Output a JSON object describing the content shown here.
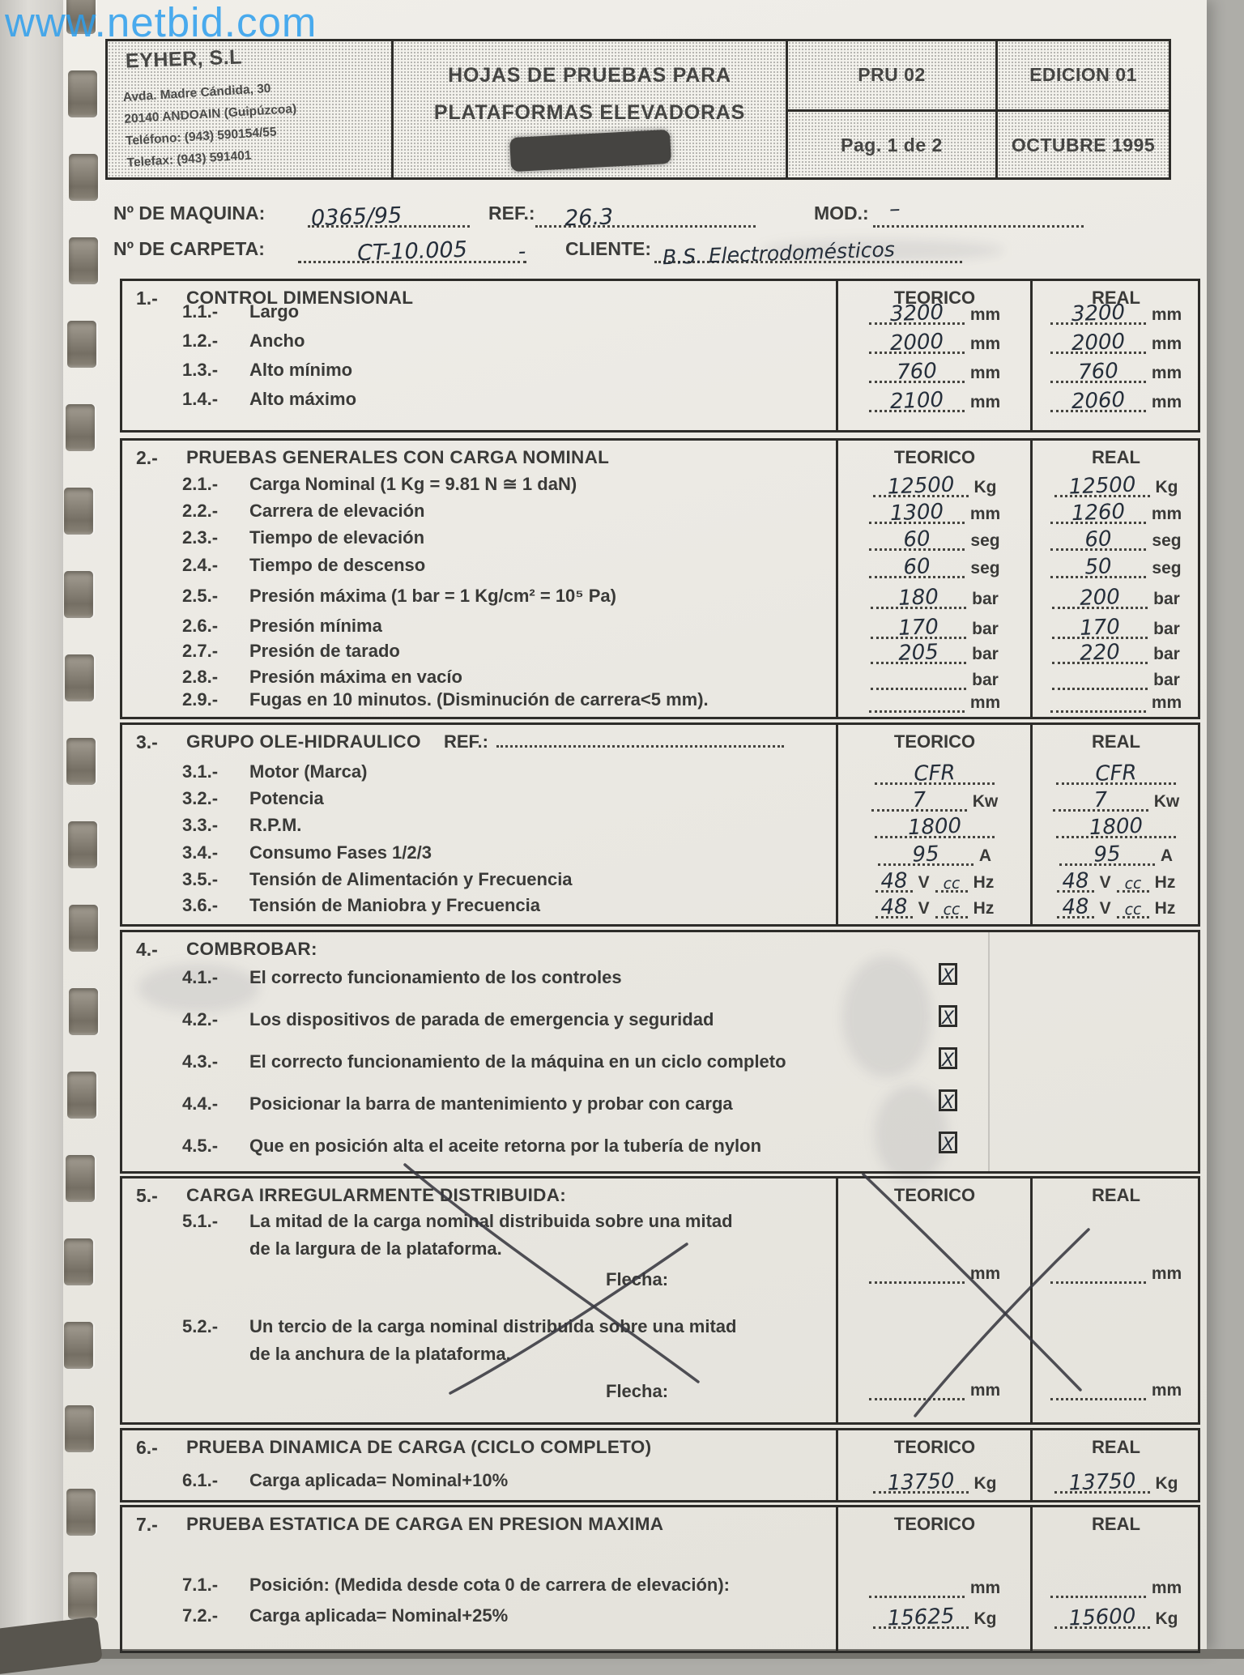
{
  "watermark": "www.netbid.com",
  "header": {
    "company": {
      "name": "EYHER, S.L",
      "address1": "Avda. Madre Cándida, 30",
      "address2": "20140 ANDOAIN (Guipúzcoa)",
      "phone": "Teléfono: (943) 590154/55",
      "fax": "Telefax:   (943) 591401"
    },
    "title_line1": "HOJAS DE PRUEBAS PARA",
    "title_line2": "PLATAFORMAS ELEVADORAS",
    "doc_code": "PRU 02",
    "edition": "EDICION 01",
    "page": "Pag. 1 de 2",
    "date": "OCTUBRE 1995"
  },
  "machine": {
    "maquina_label": "Nº DE MAQUINA:",
    "maquina_value": "0365/95",
    "ref_label": "REF.:",
    "ref_value": "26.3",
    "mod_label": "MOD.:",
    "mod_value": "–",
    "carpeta_label": "Nº DE CARPETA:",
    "carpeta_value": "CT-10.005",
    "separator": "-",
    "cliente_label": "CLIENTE:",
    "cliente_value": "B.S. Electrodomésticos"
  },
  "cols": {
    "teorico": "TEORICO",
    "real": "REAL"
  },
  "s1": {
    "num": "1.-",
    "title": "CONTROL DIMENSIONAL",
    "rows": [
      {
        "num": "1.1.-",
        "label": "Largo",
        "teorico": "3200",
        "real": "3200",
        "unit": "mm"
      },
      {
        "num": "1.2.-",
        "label": "Ancho",
        "teorico": "2000",
        "real": "2000",
        "unit": "mm"
      },
      {
        "num": "1.3.-",
        "label": "Alto mínimo",
        "teorico": "760",
        "real": "760",
        "unit": "mm"
      },
      {
        "num": "1.4.-",
        "label": "Alto máximo",
        "teorico": "2100",
        "real": "2060",
        "unit": "mm"
      }
    ]
  },
  "s2": {
    "num": "2.-",
    "title": "PRUEBAS GENERALES CON CARGA NOMINAL",
    "rows": [
      {
        "num": "2.1.-",
        "label": "Carga Nominal (1 Kg = 9.81 N ≅ 1 daN)",
        "teorico": "12500",
        "real": "12500",
        "unit": "Kg"
      },
      {
        "num": "2.2.-",
        "label": "Carrera de elevación",
        "teorico": "1300",
        "real": "1260",
        "unit": "mm"
      },
      {
        "num": "2.3.-",
        "label": "Tiempo de elevación",
        "teorico": "60",
        "real": "60",
        "unit": "seg"
      },
      {
        "num": "2.4.-",
        "label": "Tiempo de descenso",
        "teorico": "60",
        "real": "50",
        "unit": "seg"
      },
      {
        "num": "2.5.-",
        "label": "Presión máxima (1 bar = 1 Kg/cm² = 10⁵ Pa)",
        "teorico": "180",
        "real": "200",
        "unit": "bar"
      },
      {
        "num": "2.6.-",
        "label": "Presión mínima",
        "teorico": "170",
        "real": "170",
        "unit": "bar"
      },
      {
        "num": "2.7.-",
        "label": "Presión de tarado",
        "teorico": "205",
        "real": "220",
        "unit": "bar"
      },
      {
        "num": "2.8.-",
        "label": "Presión máxima en vacío",
        "teorico": "",
        "real": "",
        "unit": "bar"
      },
      {
        "num": "2.9.-",
        "label": "Fugas en 10 minutos. (Disminución de carrera<5 mm).",
        "teorico": "",
        "real": "",
        "unit": "mm"
      }
    ]
  },
  "s3": {
    "num": "3.-",
    "title": "GRUPO OLE-HIDRAULICO",
    "ref_label": "REF.:",
    "rows": [
      {
        "num": "3.1.-",
        "label": "Motor (Marca)",
        "teorico": "CFR",
        "real": "CFR",
        "unit": ""
      },
      {
        "num": "3.2.-",
        "label": "Potencia",
        "teorico": "7",
        "real": "7",
        "unit": "Kw"
      },
      {
        "num": "3.3.-",
        "label": "R.P.M.",
        "teorico": "1800",
        "real": "1800",
        "unit": ""
      },
      {
        "num": "3.4.-",
        "label": "Consumo Fases 1/2/3",
        "teorico": "95",
        "real": "95",
        "unit": "A"
      },
      {
        "num": "3.5.-",
        "label": "Tensión de Alimentación y Frecuencia",
        "teorico": "48",
        "teorico2": "cc",
        "real": "48",
        "real2": "cc",
        "unit": "V",
        "unit2": "Hz"
      },
      {
        "num": "3.6.-",
        "label": "Tensión de Maniobra y Frecuencia",
        "teorico": "48",
        "teorico2": "cc",
        "real": "48",
        "real2": "cc",
        "unit": "V",
        "unit2": "Hz"
      }
    ]
  },
  "s4": {
    "num": "4.-",
    "title": "COMBROBAR:",
    "rows": [
      {
        "num": "4.1.-",
        "label": "El correcto funcionamiento de los controles",
        "checked": true,
        "mark": "X"
      },
      {
        "num": "4.2.-",
        "label": "Los dispositivos de parada de emergencia y seguridad",
        "checked": true,
        "mark": "X"
      },
      {
        "num": "4.3.-",
        "label": "El correcto funcionamiento de la máquina en un ciclo completo",
        "checked": true,
        "mark": "X"
      },
      {
        "num": "4.4.-",
        "label": "Posicionar la barra de mantenimiento y probar con carga",
        "checked": true,
        "mark": "X"
      },
      {
        "num": "4.5.-",
        "label": "Que en posición alta el aceite retorna por la tubería de nylon",
        "checked": true,
        "mark": "X"
      }
    ]
  },
  "s5": {
    "num": "5.-",
    "title": "CARGA IRREGULARMENTE DISTRIBUIDA:",
    "crossed_out": true,
    "items": [
      {
        "num": "5.1.-",
        "line1": "La mitad de la carga nominal distribuida sobre una mitad",
        "line2": "de la largura de la plataforma.",
        "flecha_label": "Flecha:",
        "teorico": "",
        "real": "",
        "unit": "mm"
      },
      {
        "num": "5.2.-",
        "line1": "Un tercio de la carga nominal distribuida sobre una mitad",
        "line2": "de la anchura de la plataforma.",
        "flecha_label": "Flecha:",
        "teorico": "",
        "real": "",
        "unit": "mm"
      }
    ]
  },
  "s6": {
    "num": "6.-",
    "title": "PRUEBA DINAMICA DE CARGA (CICLO COMPLETO)",
    "rows": [
      {
        "num": "6.1.-",
        "label": "Carga aplicada= Nominal+10%",
        "teorico": "13750",
        "real": "13750",
        "unit": "Kg"
      }
    ]
  },
  "s7": {
    "num": "7.-",
    "title": "PRUEBA ESTATICA DE CARGA EN PRESION MAXIMA",
    "rows": [
      {
        "num": "7.1.-",
        "label": "Posición: (Medida desde cota 0 de carrera de elevación):",
        "teorico": "",
        "real": "",
        "unit": "mm"
      },
      {
        "num": "7.2.-",
        "label": "Carga aplicada= Nominal+25%",
        "teorico": "15625",
        "real": "15600",
        "unit": "Kg"
      }
    ]
  }
}
